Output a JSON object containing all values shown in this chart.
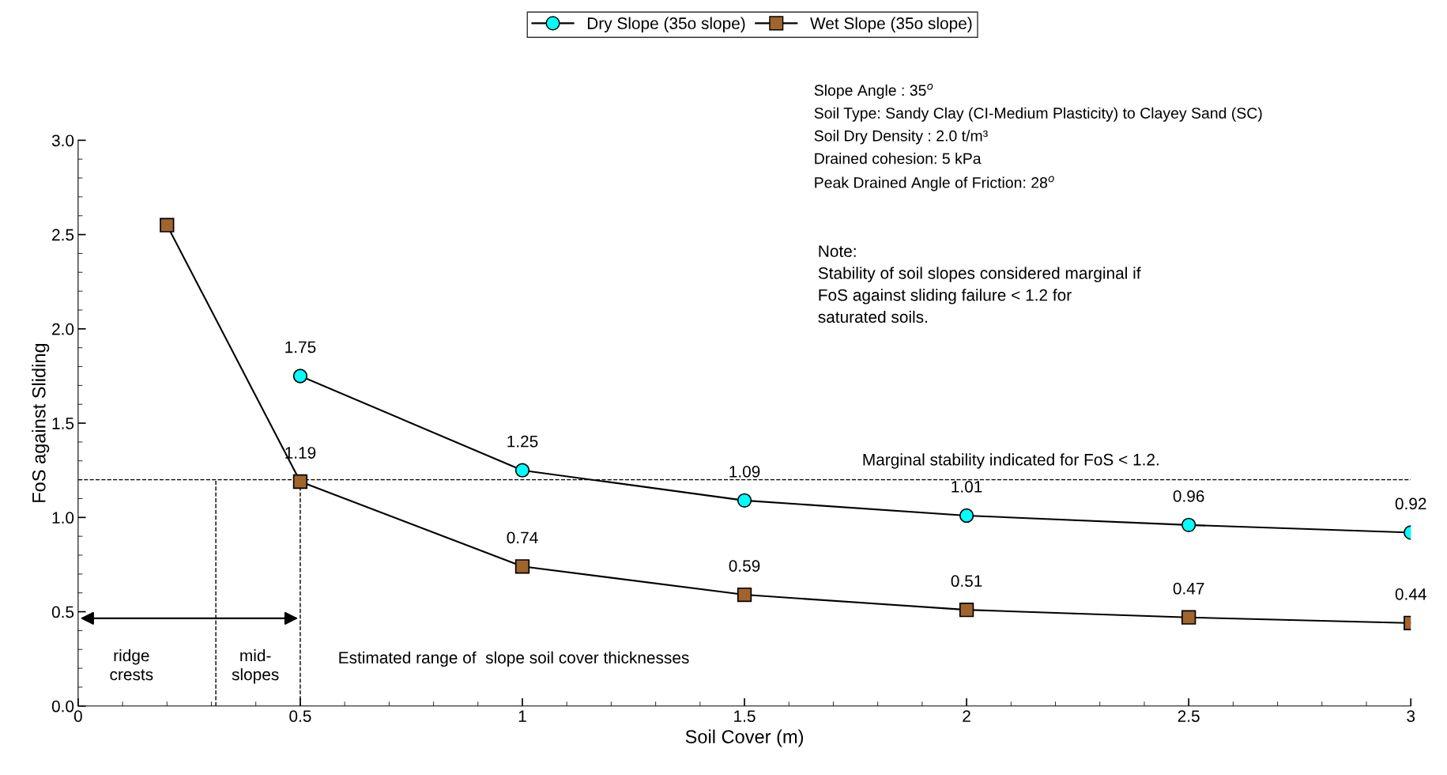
{
  "chart_data": {
    "type": "line",
    "xlabel": "Soil Cover (m)",
    "ylabel": "FoS against Sliding",
    "x": [
      0.2,
      0.5,
      1,
      1.5,
      2,
      2.5,
      3
    ],
    "series": [
      {
        "name": "Dry Slope (35o slope)",
        "color": "#00ffff",
        "marker": "circle",
        "values": [
          null,
          1.75,
          1.25,
          1.09,
          1.01,
          0.96,
          0.92
        ],
        "value_labels": [
          null,
          "1.75",
          "1.25",
          "1.09",
          "1.01",
          "0.96",
          "0.92"
        ]
      },
      {
        "name": "Wet Slope (35o slope)",
        "color": "#a0642d",
        "marker": "square",
        "values": [
          2.55,
          1.19,
          0.74,
          0.59,
          0.51,
          0.47,
          0.44
        ],
        "value_labels": [
          null,
          "1.19",
          "0.74",
          "0.59",
          "0.51",
          "0.47",
          "0.44"
        ]
      }
    ],
    "xlim": [
      0,
      3
    ],
    "ylim": [
      0,
      3
    ],
    "xticks": [
      0,
      0.5,
      1,
      1.5,
      2,
      2.5,
      3
    ],
    "yticks": [
      {
        "value": 0,
        "label": "0.0"
      },
      0.5,
      {
        "value": 1,
        "label": "1.0"
      },
      1.5,
      {
        "value": 2,
        "label": "2.0"
      },
      2.5,
      {
        "value": 3,
        "label": "3.0"
      }
    ],
    "grid": false,
    "legend": "top",
    "line_style": "solid",
    "ref_lines": [
      {
        "axis": "y",
        "value": 1.2,
        "label": "Marginal stability indicated for FoS < 1.2.",
        "line_style": "dashed",
        "color": "#000000"
      },
      {
        "axis": "x",
        "value": 0.31,
        "label": null,
        "line_style": "dashed",
        "color": "#000000"
      },
      {
        "axis": "x",
        "value": 0.5,
        "label": null,
        "line_style": "dashed",
        "color": "#000000"
      }
    ],
    "annotations": [
      "ridge\ncrests",
      "mid-\nslopes",
      "Estimated range of  slope soil cover thicknesses",
      "Slope Angle : 35$^{o}$\nSoil Type: Sandy Clay (CI-Medium Plasticity) to Clayey Sand (SC)\nSoil Dry Density : 2.0 t/m³\nDrained cohesion: 5 kPa\nPeak Drained Angle of Friction: 28$^{o}$",
      "Note:\nStability of soil slopes considered marginal if\nFoS against sliding failure < 1.2 for\nsaturated soils."
    ]
  }
}
